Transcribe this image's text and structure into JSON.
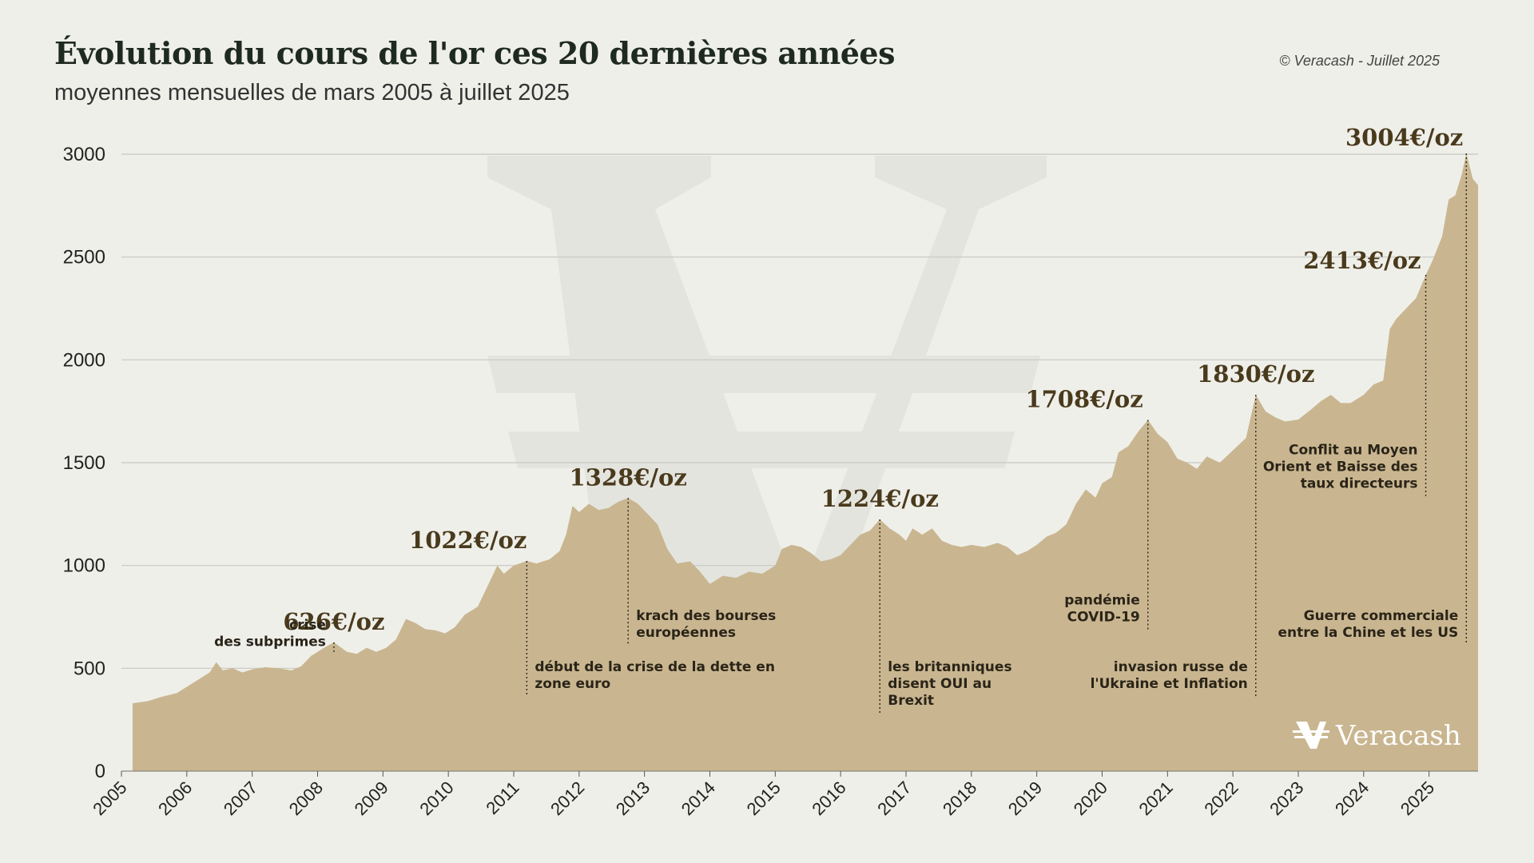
{
  "header": {
    "title": "Évolution du cours de l'or ces 20 dernières années",
    "subtitle": "moyennes mensuelles de mars 2005 à juillet 2025",
    "credit": "© Veracash - Juillet 2025"
  },
  "logo": {
    "text": "Veracash",
    "icon": "veracash-v-icon"
  },
  "colors": {
    "area": "#c9b690",
    "background": "#efefea",
    "grid": "#c8c8c2",
    "price_label": "#4a3a1c",
    "watermark": "#e4e4df"
  },
  "chart_data": {
    "type": "area",
    "xlim": [
      2005.0,
      2025.75
    ],
    "ylim": [
      0,
      3000
    ],
    "yticks": [
      0,
      500,
      1000,
      1500,
      2000,
      2500,
      3000
    ],
    "xticks": [
      "2005",
      "2006",
      "2007",
      "2008",
      "2009",
      "2010",
      "2011",
      "2012",
      "2013",
      "2014",
      "2015",
      "2016",
      "2017",
      "2018",
      "2019",
      "2020",
      "2021",
      "2022",
      "2023",
      "2024",
      "2025"
    ],
    "grid": true,
    "series": [
      {
        "points": [
          [
            2005.17,
            330
          ],
          [
            2005.4,
            340
          ],
          [
            2005.6,
            360
          ],
          [
            2005.85,
            380
          ],
          [
            2006.0,
            410
          ],
          [
            2006.2,
            450
          ],
          [
            2006.35,
            480
          ],
          [
            2006.45,
            530
          ],
          [
            2006.55,
            490
          ],
          [
            2006.7,
            500
          ],
          [
            2006.85,
            480
          ],
          [
            2007.0,
            495
          ],
          [
            2007.2,
            505
          ],
          [
            2007.4,
            500
          ],
          [
            2007.6,
            490
          ],
          [
            2007.75,
            510
          ],
          [
            2007.9,
            560
          ],
          [
            2008.1,
            600
          ],
          [
            2008.25,
            626
          ],
          [
            2008.45,
            580
          ],
          [
            2008.6,
            570
          ],
          [
            2008.75,
            600
          ],
          [
            2008.9,
            580
          ],
          [
            2009.05,
            600
          ],
          [
            2009.2,
            640
          ],
          [
            2009.35,
            740
          ],
          [
            2009.5,
            720
          ],
          [
            2009.65,
            690
          ],
          [
            2009.8,
            685
          ],
          [
            2009.95,
            670
          ],
          [
            2010.1,
            700
          ],
          [
            2010.25,
            760
          ],
          [
            2010.45,
            800
          ],
          [
            2010.6,
            900
          ],
          [
            2010.75,
            1000
          ],
          [
            2010.85,
            960
          ],
          [
            2011.0,
            1000
          ],
          [
            2011.2,
            1022
          ],
          [
            2011.35,
            1010
          ],
          [
            2011.55,
            1030
          ],
          [
            2011.7,
            1070
          ],
          [
            2011.8,
            1150
          ],
          [
            2011.9,
            1290
          ],
          [
            2012.0,
            1260
          ],
          [
            2012.15,
            1300
          ],
          [
            2012.3,
            1270
          ],
          [
            2012.45,
            1280
          ],
          [
            2012.6,
            1310
          ],
          [
            2012.75,
            1328
          ],
          [
            2012.9,
            1300
          ],
          [
            2013.05,
            1250
          ],
          [
            2013.2,
            1200
          ],
          [
            2013.35,
            1080
          ],
          [
            2013.5,
            1010
          ],
          [
            2013.7,
            1020
          ],
          [
            2013.85,
            970
          ],
          [
            2014.0,
            910
          ],
          [
            2014.2,
            950
          ],
          [
            2014.4,
            940
          ],
          [
            2014.6,
            970
          ],
          [
            2014.8,
            960
          ],
          [
            2015.0,
            1000
          ],
          [
            2015.1,
            1080
          ],
          [
            2015.25,
            1100
          ],
          [
            2015.4,
            1090
          ],
          [
            2015.55,
            1060
          ],
          [
            2015.7,
            1020
          ],
          [
            2015.85,
            1030
          ],
          [
            2016.0,
            1050
          ],
          [
            2016.15,
            1100
          ],
          [
            2016.3,
            1150
          ],
          [
            2016.45,
            1170
          ],
          [
            2016.6,
            1224
          ],
          [
            2016.75,
            1180
          ],
          [
            2016.9,
            1150
          ],
          [
            2017.0,
            1120
          ],
          [
            2017.1,
            1180
          ],
          [
            2017.25,
            1150
          ],
          [
            2017.4,
            1180
          ],
          [
            2017.55,
            1120
          ],
          [
            2017.7,
            1100
          ],
          [
            2017.85,
            1090
          ],
          [
            2018.0,
            1100
          ],
          [
            2018.2,
            1090
          ],
          [
            2018.4,
            1110
          ],
          [
            2018.55,
            1090
          ],
          [
            2018.7,
            1050
          ],
          [
            2018.85,
            1070
          ],
          [
            2019.0,
            1100
          ],
          [
            2019.15,
            1140
          ],
          [
            2019.3,
            1160
          ],
          [
            2019.45,
            1200
          ],
          [
            2019.6,
            1300
          ],
          [
            2019.75,
            1370
          ],
          [
            2019.9,
            1330
          ],
          [
            2020.0,
            1400
          ],
          [
            2020.15,
            1430
          ],
          [
            2020.25,
            1550
          ],
          [
            2020.4,
            1580
          ],
          [
            2020.55,
            1650
          ],
          [
            2020.7,
            1708
          ],
          [
            2020.85,
            1640
          ],
          [
            2021.0,
            1600
          ],
          [
            2021.15,
            1520
          ],
          [
            2021.3,
            1500
          ],
          [
            2021.45,
            1470
          ],
          [
            2021.6,
            1530
          ],
          [
            2021.8,
            1500
          ],
          [
            2022.0,
            1560
          ],
          [
            2022.2,
            1620
          ],
          [
            2022.35,
            1830
          ],
          [
            2022.5,
            1750
          ],
          [
            2022.65,
            1720
          ],
          [
            2022.8,
            1700
          ],
          [
            2023.0,
            1710
          ],
          [
            2023.2,
            1760
          ],
          [
            2023.35,
            1800
          ],
          [
            2023.5,
            1830
          ],
          [
            2023.65,
            1790
          ],
          [
            2023.8,
            1790
          ],
          [
            2024.0,
            1830
          ],
          [
            2024.15,
            1880
          ],
          [
            2024.3,
            1900
          ],
          [
            2024.4,
            2150
          ],
          [
            2024.5,
            2200
          ],
          [
            2024.65,
            2250
          ],
          [
            2024.8,
            2300
          ],
          [
            2024.95,
            2413
          ],
          [
            2025.05,
            2480
          ],
          [
            2025.2,
            2600
          ],
          [
            2025.3,
            2780
          ],
          [
            2025.4,
            2800
          ],
          [
            2025.5,
            2900
          ],
          [
            2025.57,
            3004
          ],
          [
            2025.67,
            2880
          ],
          [
            2025.75,
            2850
          ]
        ]
      }
    ],
    "annotations": [
      {
        "x": 2008.25,
        "y": 626,
        "price": "626€/oz",
        "text": [
          "crise",
          "des subprimes"
        ],
        "text_align": "end",
        "text_y": 690
      },
      {
        "x": 2011.2,
        "y": 1022,
        "price": "1022€/oz",
        "text": [
          "début de la crise de la dette en",
          "zone euro"
        ],
        "text_align": "start",
        "text_y": 485
      },
      {
        "x": 2012.75,
        "y": 1328,
        "price": "1328€/oz",
        "text": [
          "krach des bourses",
          "européennes"
        ],
        "text_align": "start",
        "text_y": 735
      },
      {
        "x": 2016.6,
        "y": 1224,
        "price": "1224€/oz",
        "text": [
          "les britanniques",
          "disent OUI au",
          "Brexit"
        ],
        "text_align": "start",
        "text_y": 485
      },
      {
        "x": 2020.7,
        "y": 1708,
        "price": "1708€/oz",
        "text": [
          "pandémie",
          "COVID-19"
        ],
        "text_align": "end",
        "text_y": 810
      },
      {
        "x": 2022.35,
        "y": 1830,
        "price": "1830€/oz",
        "text": [
          "invasion russe de",
          "l'Ukraine et Inflation"
        ],
        "text_align": "end",
        "text_y": 485
      },
      {
        "x": 2024.95,
        "y": 2413,
        "price": "2413€/oz",
        "text": [
          "Conflit au Moyen",
          "Orient et Baisse des",
          "taux directeurs"
        ],
        "text_align": "end",
        "text_y": 1540
      },
      {
        "x": 2025.57,
        "y": 3004,
        "price": "3004€/oz",
        "text": [
          "Guerre commerciale",
          "entre la Chine et les US"
        ],
        "text_align": "end",
        "text_y": 735
      }
    ]
  }
}
